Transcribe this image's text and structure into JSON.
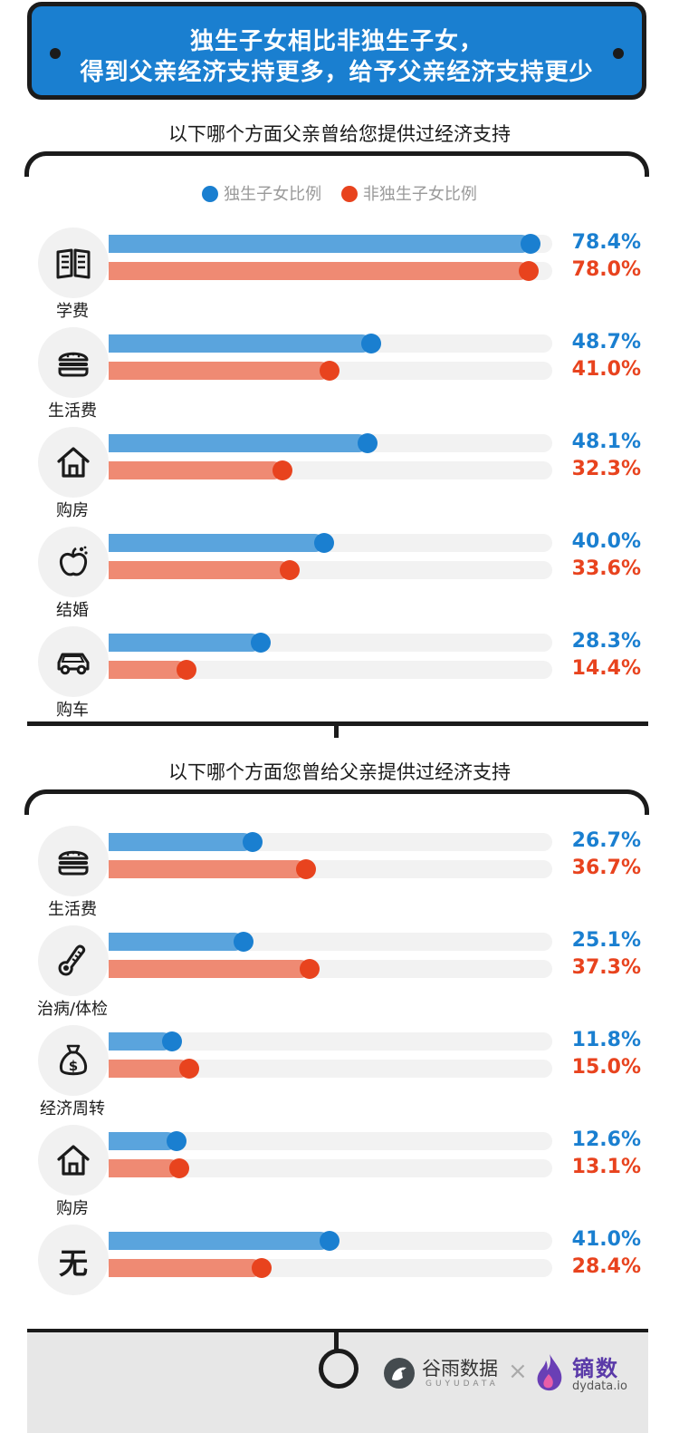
{
  "header": {
    "line1": "独生子女相比非独生子女，",
    "line2": "得到父亲经济支持更多，给予父亲经济支持更少"
  },
  "colors": {
    "only_child": "#5aa4dd",
    "only_child_dot": "#1a7fd0",
    "non_only_child": "#ef8a73",
    "non_only_child_dot": "#e8431e",
    "track": "#f2f2f2"
  },
  "legend": {
    "only_child": "独生子女比例",
    "non_only_child": "非独生子女比例"
  },
  "chart_data": [
    {
      "type": "bar",
      "title": "以下哪个方面父亲曾给您提供过经济支持",
      "categories": [
        "学费",
        "生活费",
        "购房",
        "结婚",
        "购车"
      ],
      "icons": [
        "book-icon",
        "burger-icon",
        "house-icon",
        "apple-icon",
        "car-icon"
      ],
      "series": [
        {
          "name": "独生子女比例",
          "values": [
            78.4,
            48.7,
            48.1,
            40.0,
            28.3
          ],
          "labels": [
            "78.4%",
            "48.7%",
            "48.1%",
            "40.0%",
            "28.3%"
          ]
        },
        {
          "name": "非独生子女比例",
          "values": [
            78.0,
            41.0,
            32.3,
            33.6,
            14.4
          ],
          "labels": [
            "78.0%",
            "41.0%",
            "32.3%",
            "33.6%",
            "14.4%"
          ]
        }
      ],
      "xlim": [
        0,
        80
      ],
      "legend": "top-center"
    },
    {
      "type": "bar",
      "title": "以下哪个方面您曾给父亲提供过经济支持",
      "categories": [
        "生活费",
        "治病/体检",
        "经济周转",
        "购房",
        "无"
      ],
      "icons": [
        "burger-icon",
        "thermometer-icon",
        "money-bag-icon",
        "house-icon",
        "none-text-icon"
      ],
      "series": [
        {
          "name": "独生子女比例",
          "values": [
            26.7,
            25.1,
            11.8,
            12.6,
            41.0
          ],
          "labels": [
            "26.7%",
            "25.1%",
            "11.8%",
            "12.6%",
            "41.0%"
          ]
        },
        {
          "name": "非独生子女比例",
          "values": [
            36.7,
            37.3,
            15.0,
            13.1,
            28.4
          ],
          "labels": [
            "36.7%",
            "37.3%",
            "15.0%",
            "13.1%",
            "28.4%"
          ]
        }
      ],
      "xlim": [
        0,
        80
      ]
    }
  ],
  "footer": {
    "logo1_cn": "谷雨数据",
    "logo1_en": "GUYUDATA",
    "separator": "×",
    "logo2_cn": "镝数",
    "logo2_en": "dydata.io"
  }
}
